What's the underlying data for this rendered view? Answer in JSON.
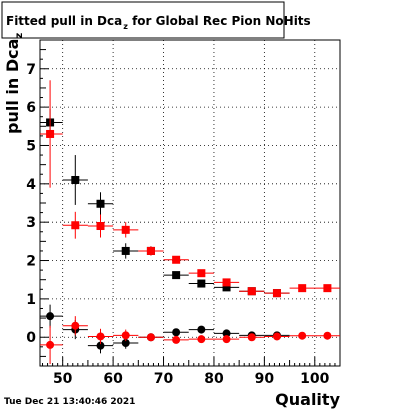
{
  "chart_data": {
    "type": "scatter",
    "title": "Fitted pull in Dca",
    "title_sub": "z",
    "title_rest": " for Global Rec Pion NoHits",
    "ylabel": "pull in Dca",
    "ylabel_sub": "z",
    "xlabel": "Quality",
    "xlim": [
      45.5,
      105
    ],
    "ylim": [
      -0.75,
      7.75
    ],
    "x_ticks": [
      50,
      60,
      70,
      80,
      90,
      100
    ],
    "y_ticks": [
      0,
      1,
      2,
      3,
      4,
      5,
      6,
      7
    ],
    "grid": true,
    "timestamp": "Tue Dec 21 13:40:46 2021",
    "colors": {
      "black": "#000000",
      "red": "#ff0000"
    },
    "series": [
      {
        "marker": "square",
        "color": "#000000",
        "points": [
          {
            "x": 47.5,
            "y": 5.6,
            "ey": 0.35,
            "ex": 2.5
          },
          {
            "x": 52.5,
            "y": 4.1,
            "ey": 0.65,
            "ex": 2.5
          },
          {
            "x": 57.5,
            "y": 3.48,
            "ey": 0.3,
            "ex": 2.5
          },
          {
            "x": 62.5,
            "y": 2.25,
            "ey": 0.2,
            "ex": 2.5
          },
          {
            "x": 67.5,
            "y": 2.25,
            "ey": 0.12,
            "ex": 2.5
          },
          {
            "x": 72.5,
            "y": 1.62,
            "ey": 0.08,
            "ex": 2.5
          },
          {
            "x": 77.5,
            "y": 1.4,
            "ey": 0.06,
            "ex": 2.5
          },
          {
            "x": 82.5,
            "y": 1.3,
            "ey": 0.05,
            "ex": 2.5
          },
          {
            "x": 87.5,
            "y": 1.2,
            "ey": 0.04,
            "ex": 2.5
          },
          {
            "x": 92.5,
            "y": 1.15,
            "ey": 0.04,
            "ex": 2.5
          }
        ]
      },
      {
        "marker": "square",
        "color": "#ff0000",
        "points": [
          {
            "x": 47.5,
            "y": 5.3,
            "ey": 1.4,
            "ex": 2.5
          },
          {
            "x": 52.5,
            "y": 2.92,
            "ey": 0.35,
            "ex": 2.5
          },
          {
            "x": 57.5,
            "y": 2.9,
            "ey": 0.3,
            "ex": 2.5
          },
          {
            "x": 62.5,
            "y": 2.8,
            "ey": 0.2,
            "ex": 2.5
          },
          {
            "x": 67.5,
            "y": 2.25,
            "ey": 0.12,
            "ex": 2.5
          },
          {
            "x": 72.5,
            "y": 2.02,
            "ey": 0.08,
            "ex": 2.5
          },
          {
            "x": 77.5,
            "y": 1.67,
            "ey": 0.06,
            "ex": 2.5
          },
          {
            "x": 82.5,
            "y": 1.43,
            "ey": 0.05,
            "ex": 2.5
          },
          {
            "x": 87.5,
            "y": 1.2,
            "ey": 0.04,
            "ex": 2.5
          },
          {
            "x": 92.5,
            "y": 1.15,
            "ey": 0.04,
            "ex": 2.5
          },
          {
            "x": 97.5,
            "y": 1.28,
            "ey": 0.04,
            "ex": 2.5
          },
          {
            "x": 102.5,
            "y": 1.28,
            "ey": 0.04,
            "ex": 2.5
          }
        ]
      },
      {
        "marker": "circle",
        "color": "#000000",
        "points": [
          {
            "x": 47.5,
            "y": 0.55,
            "ey": 0.3,
            "ex": 2.5
          },
          {
            "x": 52.5,
            "y": 0.2,
            "ey": 0.25,
            "ex": 2.5
          },
          {
            "x": 57.5,
            "y": -0.22,
            "ey": 0.2,
            "ex": 2.5
          },
          {
            "x": 62.5,
            "y": -0.15,
            "ey": 0.15,
            "ex": 2.5
          },
          {
            "x": 67.5,
            "y": 0.0,
            "ey": 0.08,
            "ex": 2.5
          },
          {
            "x": 72.5,
            "y": 0.13,
            "ey": 0.06,
            "ex": 2.5
          },
          {
            "x": 77.5,
            "y": 0.2,
            "ey": 0.05,
            "ex": 2.5
          },
          {
            "x": 82.5,
            "y": 0.1,
            "ey": 0.04,
            "ex": 2.5
          },
          {
            "x": 87.5,
            "y": 0.05,
            "ey": 0.03,
            "ex": 2.5
          },
          {
            "x": 92.5,
            "y": 0.05,
            "ey": 0.03,
            "ex": 2.5
          }
        ]
      },
      {
        "marker": "circle",
        "color": "#ff0000",
        "points": [
          {
            "x": 47.5,
            "y": -0.2,
            "ey": 0.5,
            "ex": 2.5
          },
          {
            "x": 52.5,
            "y": 0.3,
            "ey": 0.25,
            "ex": 2.5
          },
          {
            "x": 57.5,
            "y": 0.02,
            "ey": 0.2,
            "ex": 2.5
          },
          {
            "x": 62.5,
            "y": 0.05,
            "ey": 0.15,
            "ex": 2.5
          },
          {
            "x": 67.5,
            "y": 0.0,
            "ey": 0.08,
            "ex": 2.5
          },
          {
            "x": 72.5,
            "y": -0.07,
            "ey": 0.06,
            "ex": 2.5
          },
          {
            "x": 77.5,
            "y": -0.05,
            "ey": 0.05,
            "ex": 2.5
          },
          {
            "x": 82.5,
            "y": -0.05,
            "ey": 0.04,
            "ex": 2.5
          },
          {
            "x": 87.5,
            "y": 0.0,
            "ey": 0.03,
            "ex": 2.5
          },
          {
            "x": 92.5,
            "y": 0.02,
            "ey": 0.03,
            "ex": 2.5
          },
          {
            "x": 97.5,
            "y": 0.04,
            "ey": 0.03,
            "ex": 2.5
          },
          {
            "x": 102.5,
            "y": 0.04,
            "ey": 0.03,
            "ex": 2.5
          }
        ]
      }
    ]
  }
}
